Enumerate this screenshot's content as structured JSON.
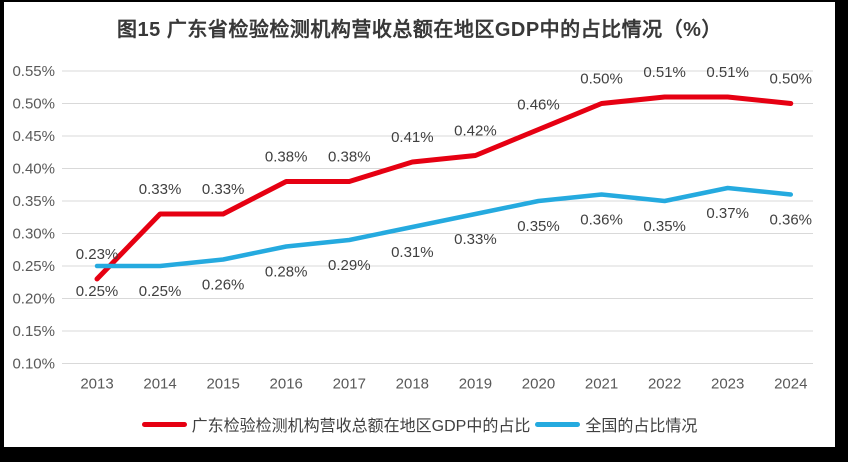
{
  "figure": {
    "title": "图15  广东省检验检测机构营收总额在地区GDP中的占比情况（%）"
  },
  "chart_data": {
    "type": "line",
    "title": "图15  广东省检验检测机构营收总额在地区GDP中的占比情况（%）",
    "categories": [
      "2013",
      "2014",
      "2015",
      "2016",
      "2017",
      "2018",
      "2019",
      "2020",
      "2021",
      "2022",
      "2023",
      "2024"
    ],
    "series": [
      {
        "name": "广东检验检测机构营收总额在地区GDP中的占比",
        "color": "#e60012",
        "values": [
          0.23,
          0.33,
          0.33,
          0.38,
          0.38,
          0.41,
          0.42,
          0.46,
          0.5,
          0.51,
          0.51,
          0.5
        ],
        "point_labels": [
          "0.23%",
          "0.33%",
          "0.33%",
          "0.38%",
          "0.38%",
          "0.41%",
          "0.42%",
          "0.46%",
          "0.50%",
          "0.51%",
          "0.51%",
          "0.50%"
        ],
        "label_position": "above"
      },
      {
        "name": "全国的占比情况",
        "color": "#25aadf",
        "values": [
          0.25,
          0.25,
          0.26,
          0.28,
          0.29,
          0.31,
          0.33,
          0.35,
          0.36,
          0.35,
          0.37,
          0.36
        ],
        "point_labels": [
          "0.25%",
          "0.25%",
          "0.26%",
          "0.28%",
          "0.29%",
          "0.31%",
          "0.33%",
          "0.35%",
          "0.36%",
          "0.35%",
          "0.37%",
          "0.36%"
        ],
        "label_position": "below"
      }
    ],
    "y_axis": {
      "min": 0.1,
      "max": 0.55,
      "step": 0.05,
      "unit": "%",
      "tick_labels": [
        "0.55%",
        "0.50%",
        "0.45%",
        "0.40%",
        "0.35%",
        "0.30%",
        "0.25%",
        "0.20%",
        "0.15%",
        "0.10%"
      ]
    },
    "grid": true,
    "legend_position": "bottom"
  },
  "colors": {
    "grid": "#d9d9d9",
    "axis_text": "#595959",
    "data_label_text": "#404040",
    "title_text": "#383838",
    "border": "#000000",
    "background": "#ffffff"
  }
}
